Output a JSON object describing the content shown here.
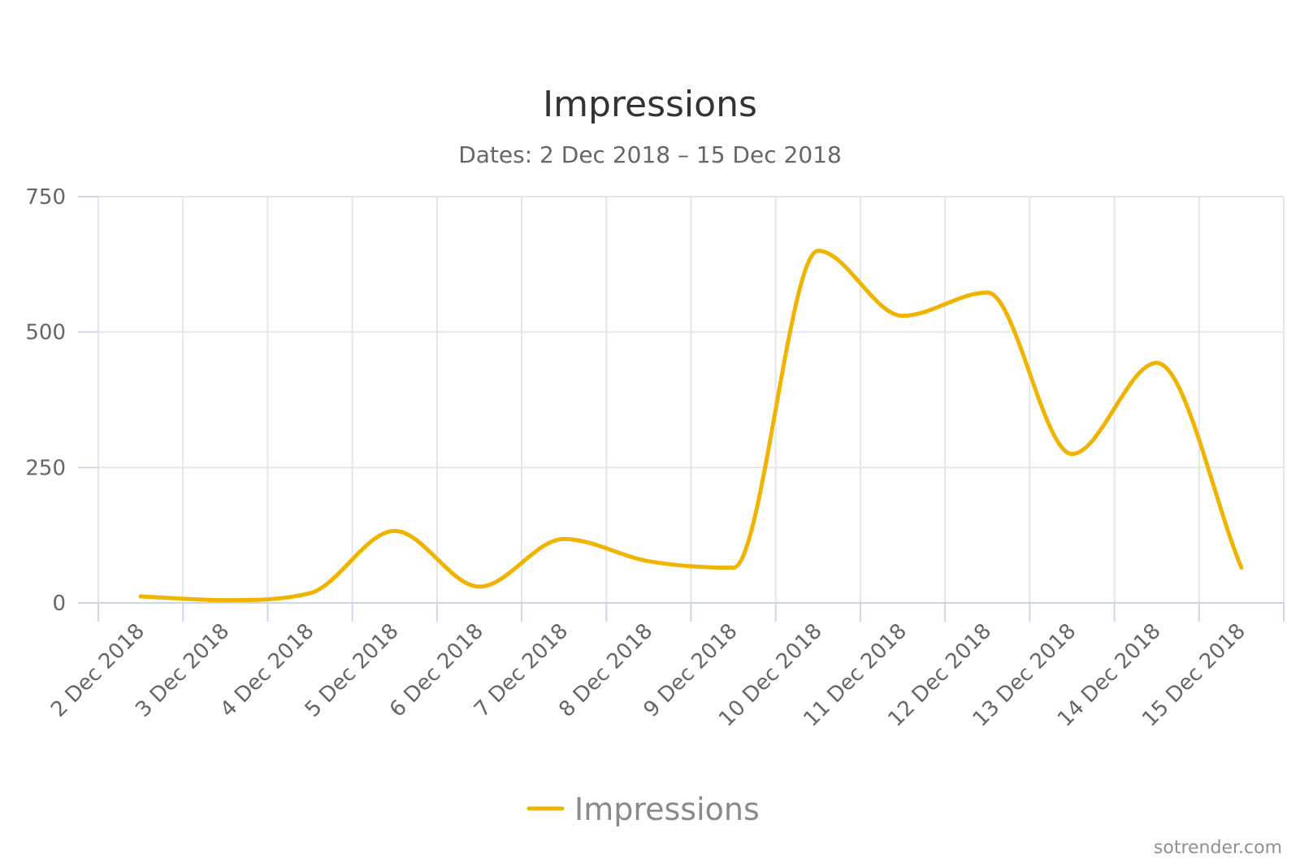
{
  "chart_data": {
    "type": "line",
    "title": "Impressions",
    "subtitle": "Dates: 2 Dec 2018 – 15 Dec 2018",
    "categories": [
      "2 Dec 2018",
      "3 Dec 2018",
      "4 Dec 2018",
      "5 Dec 2018",
      "6 Dec 2018",
      "7 Dec 2018",
      "8 Dec 2018",
      "9 Dec 2018",
      "10 Dec 2018",
      "11 Dec 2018",
      "12 Dec 2018",
      "13 Dec 2018",
      "14 Dec 2018",
      "15 Dec 2018"
    ],
    "series": [
      {
        "name": "Impressions",
        "color": "#f0b400",
        "values": [
          12,
          5,
          18,
          133,
          30,
          118,
          77,
          65,
          650,
          530,
          573,
          275,
          443,
          65
        ]
      }
    ],
    "yticks": [
      "0",
      "250",
      "500",
      "750"
    ],
    "ylim": [
      0,
      750
    ],
    "xlabel": "",
    "ylabel": "",
    "grid": true,
    "legend": "bottom-center"
  },
  "credit": "sotrender.com"
}
